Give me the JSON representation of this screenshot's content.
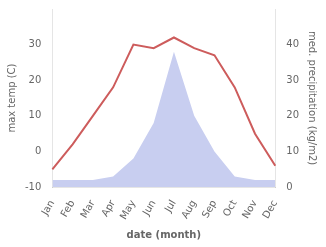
{
  "chart_data": {
    "type": "line",
    "xlabel": "date (month)",
    "ylabel": "max temp (C)",
    "y2label": "med. precipitation (kg/m2)",
    "categories": [
      "Jan",
      "Feb",
      "Mar",
      "Apr",
      "May",
      "Jun",
      "Jul",
      "Aug",
      "Sep",
      "Oct",
      "Nov",
      "Dec"
    ],
    "series": [
      {
        "type": "line",
        "color": "#cd5c5c",
        "values": [
          -5,
          2,
          10,
          18,
          30,
          29,
          32,
          29,
          27,
          18,
          5,
          -4
        ]
      },
      {
        "type": "area",
        "color": "#c8cef0",
        "axis": "y2",
        "values": [
          2,
          2,
          2,
          3,
          8,
          18,
          38,
          20,
          10,
          3,
          2,
          2
        ]
      }
    ],
    "ylim": [
      -10,
      40
    ],
    "yticks": [
      -10,
      0,
      10,
      20,
      30
    ],
    "y2lim": [
      0,
      50
    ],
    "y2ticks": [
      0,
      10,
      20,
      30,
      40
    ],
    "grid": false
  }
}
